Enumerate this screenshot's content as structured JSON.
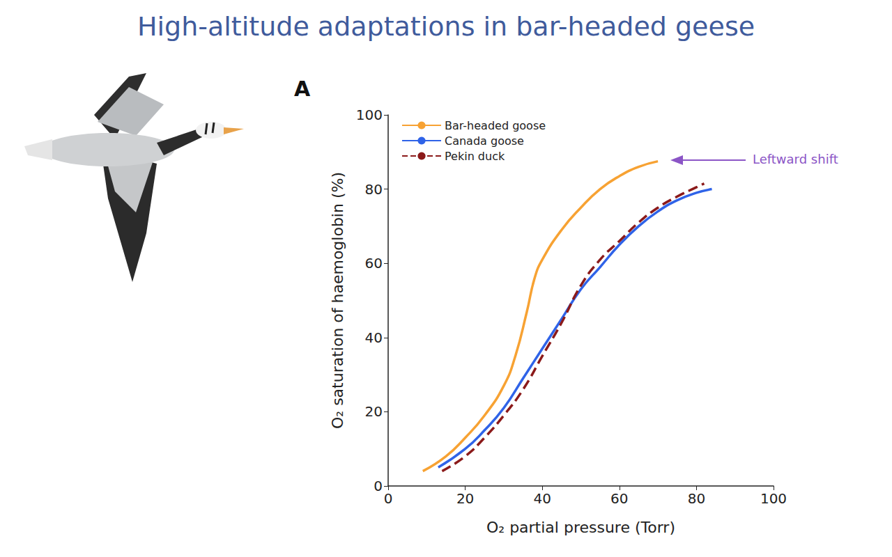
{
  "chart_data": {
    "type": "line",
    "title": "High-altitude adaptations in bar-headed geese",
    "panel_label": "A",
    "x_label": "O₂ partial pressure (Torr)",
    "y_label": "O₂ saturation of haemoglobin (%)",
    "xlim": [
      0,
      100
    ],
    "xticks": [
      0,
      20,
      40,
      60,
      80,
      100
    ],
    "ylim": [
      0,
      100
    ],
    "yticks": [
      0,
      20,
      40,
      60,
      80,
      100
    ],
    "grid": false,
    "legend": "upper left",
    "annotations": [
      {
        "text": "Leftward shift",
        "color": "#8b55c6"
      }
    ],
    "series": [
      {
        "name": "Bar-headed goose",
        "color": "#f7a233",
        "line_style": "solid",
        "x": [
          9,
          15,
          20,
          25,
          30,
          33,
          36,
          38,
          40,
          45,
          50,
          55,
          60,
          65,
          70
        ],
        "values": [
          4,
          8,
          13,
          19,
          27,
          35,
          47,
          56,
          61,
          69,
          75,
          80,
          83.5,
          86,
          87.5
        ]
      },
      {
        "name": "Canada goose",
        "color": "#2f63e8",
        "line_style": "solid",
        "x": [
          13,
          20,
          25,
          30,
          35,
          40,
          45,
          50,
          55,
          60,
          65,
          70,
          75,
          80,
          84
        ],
        "values": [
          5,
          10,
          15,
          21,
          29,
          37,
          45,
          53,
          59,
          65,
          70,
          74,
          77,
          79,
          80
        ]
      },
      {
        "name": "Pekin duck",
        "color": "#8b1a1a",
        "line_style": "dashed",
        "x": [
          14,
          20,
          25,
          30,
          35,
          40,
          45,
          50,
          55,
          60,
          65,
          70,
          75,
          80,
          82
        ],
        "values": [
          4,
          8,
          13,
          19,
          26,
          35,
          44,
          54,
          61,
          66,
          71,
          75,
          78,
          80.5,
          81.5
        ]
      }
    ]
  }
}
